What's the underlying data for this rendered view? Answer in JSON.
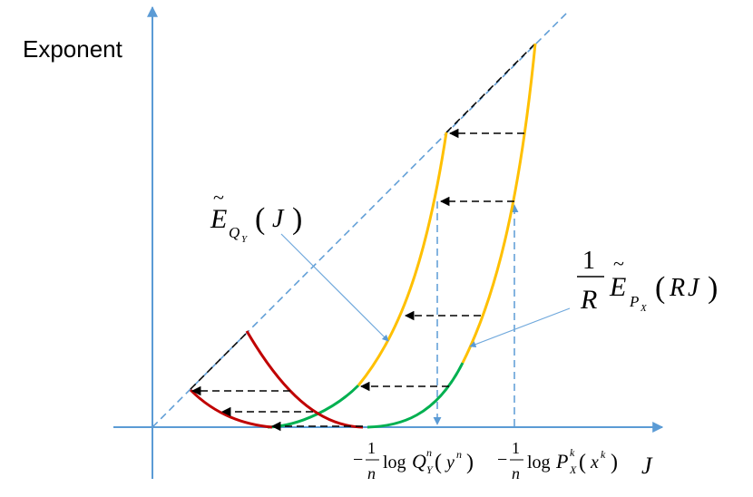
{
  "figure": {
    "y_axis_label": "Exponent",
    "x_axis_symbol": "J",
    "label_EQ": {
      "tilde_letter": "E",
      "sub": "Q",
      "subsub": "Y",
      "arg": "J"
    },
    "label_EP": {
      "frac_num": "1",
      "frac_den": "R",
      "tilde_letter": "E",
      "sub": "P",
      "subsub": "X",
      "arg_R": "R",
      "arg_J": "J"
    },
    "tick_Q": {
      "minus": "−",
      "num": "1",
      "den": "n",
      "log": "log",
      "Q": "Q",
      "Qsup": "n",
      "Qsub": "Y",
      "y": "y",
      "ysup": "n"
    },
    "tick_P": {
      "minus": "−",
      "num": "1",
      "den": "n",
      "log": "log",
      "P": "P",
      "Psup": "k",
      "Psub": "X",
      "x": "x",
      "xsup": "k"
    }
  },
  "colors": {
    "axis": "#5b9bd5",
    "diagonal": "#5b9bd5",
    "yellow": "#ffc000",
    "green": "#00b050",
    "red": "#c00000",
    "pointer": "#6fa8dc",
    "arrow": "#000000"
  }
}
